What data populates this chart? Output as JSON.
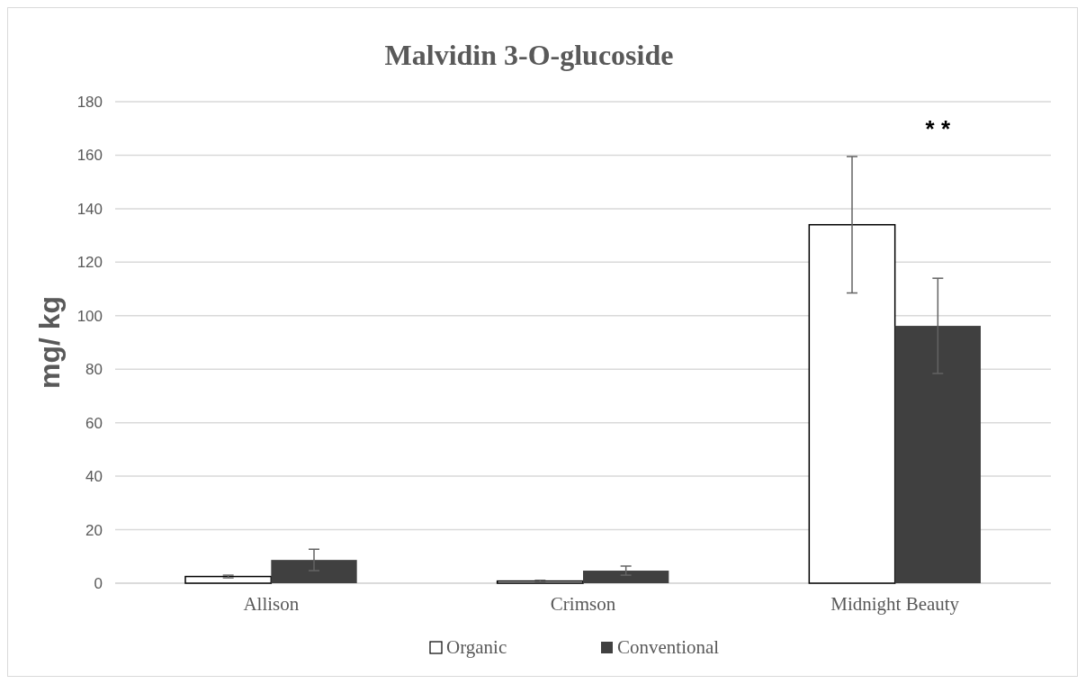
{
  "chart_data": {
    "type": "bar",
    "title": "Malvidin 3-O-glucoside",
    "ylabel": "mg/ kg",
    "categories": [
      "Allison",
      "Crimson",
      "Midnight Beauty"
    ],
    "series": [
      {
        "name": "Organic",
        "color": "#ffffff",
        "values": [
          2.5,
          0.8,
          134
        ],
        "errors": [
          0.5,
          0.3,
          25.5
        ]
      },
      {
        "name": "Conventional",
        "color": "#404040",
        "values": [
          8.7,
          4.7,
          96.2
        ],
        "errors": [
          4,
          1.7,
          17.8
        ]
      }
    ],
    "ylim": [
      0,
      180
    ],
    "yticks": [
      0,
      20,
      40,
      60,
      80,
      100,
      120,
      140,
      160,
      180
    ],
    "grid": "y",
    "legend": "bottom",
    "annotations": [
      "* *"
    ]
  }
}
